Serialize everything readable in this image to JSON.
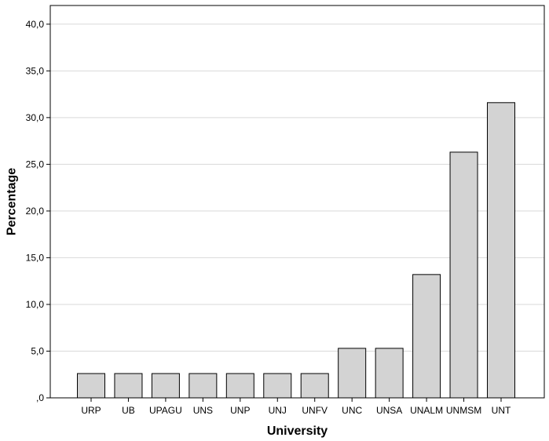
{
  "chart_data": {
    "type": "bar",
    "categories": [
      "URP",
      "UB",
      "UPAGU",
      "UNS",
      "UNP",
      "UNJ",
      "UNFV",
      "UNC",
      "UNSA",
      "UNALM",
      "UNMSM",
      "UNT"
    ],
    "values": [
      2.6,
      2.6,
      2.6,
      2.6,
      2.6,
      2.6,
      2.6,
      5.3,
      5.3,
      13.2,
      26.3,
      31.6
    ],
    "xlabel": "University",
    "ylabel": "Percentage",
    "ylim": [
      0,
      42
    ],
    "yticks": [
      0,
      5,
      10,
      15,
      20,
      25,
      30,
      35,
      40
    ],
    "ytick_labels": [
      ",0",
      "5,0",
      "10,0",
      "15,0",
      "20,0",
      "25,0",
      "30,0",
      "35,0",
      "40,0"
    ],
    "grid": true,
    "colors": {
      "bar_fill": "#d3d3d3",
      "bar_stroke": "#000000",
      "grid": "#d9d9d9",
      "axis": "#000000"
    }
  }
}
